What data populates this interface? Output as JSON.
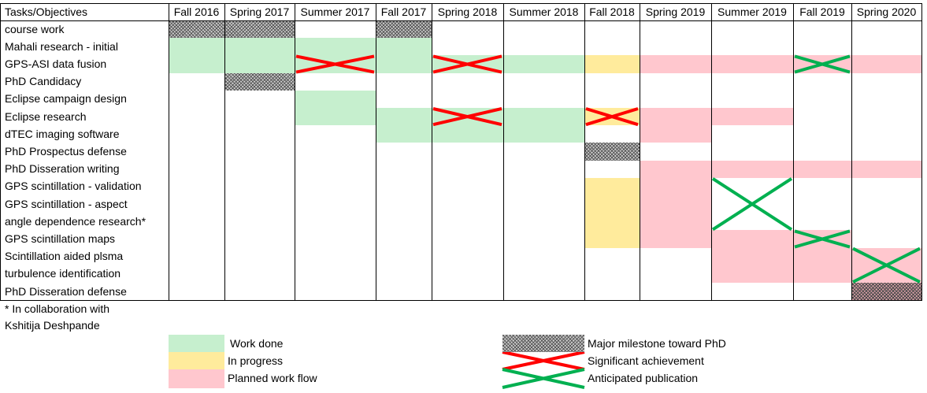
{
  "header_label": "Tasks/Objectives",
  "columns": [
    "Fall 2016",
    "Spring 2017",
    "Summer 2017",
    "Fall 2017",
    "Spring 2018",
    "Summer 2018",
    "Fall 2018",
    "Spring 2019",
    "Summer 2019",
    "Fall 2019",
    "Spring 2020"
  ],
  "rows": [
    "course work",
    "Mahali research - initial",
    "GPS-ASI data fusion",
    "PhD Candidacy",
    "Eclipse campaign design",
    "Eclipse research",
    "dTEC imaging software",
    "PhD Prospectus defense",
    "PhD Disseration writing",
    "GPS scintillation - validation",
    "GPS scintillation - aspect",
    "angle dependence research*",
    "GPS scintillation maps",
    "Scintillation aided plsma",
    "turbulence identification",
    "PhD Disseration defense"
  ],
  "footnote": [
    "* In collaboration with",
    "Kshitija Deshpande"
  ],
  "colors": {
    "work_done": "#c6efce",
    "in_progress": "#ffeb9c",
    "planned": "#ffc7ce",
    "achievement_cross": "#ff0000",
    "publication_cross": "#00b050"
  },
  "legend": {
    "work_done": "Work done",
    "in_progress": "In progress",
    "planned": "Planned work flow",
    "milestone": "Major milestone toward PhD",
    "achievement": "Significant achievement",
    "publication": "Anticipated publication"
  }
}
